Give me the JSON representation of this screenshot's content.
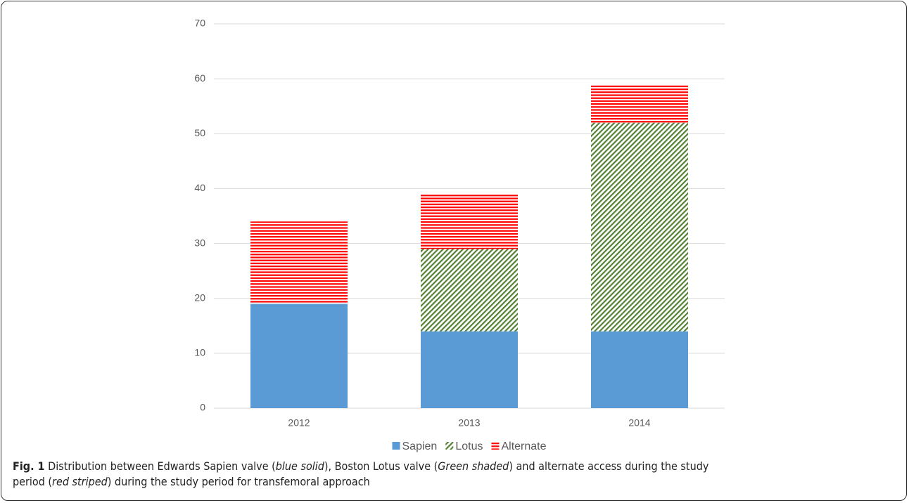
{
  "chart_data": {
    "type": "stacked-bar",
    "categories": [
      "2012",
      "2013",
      "2014"
    ],
    "series": [
      {
        "name": "Sapien",
        "color": "#5b9bd5",
        "values": [
          19,
          14,
          14
        ]
      },
      {
        "name": "Lotus",
        "color": "#548235",
        "values": [
          0,
          15,
          38
        ]
      },
      {
        "name": "Alternate",
        "color": "#ff0000",
        "values": [
          15,
          10,
          7
        ]
      }
    ],
    "ylim": [
      0,
      70
    ],
    "yticks": [
      0,
      10,
      20,
      30,
      40,
      50,
      60,
      70
    ],
    "grid": true,
    "legend": "bottom"
  },
  "caption": {
    "label": "Fig. 1",
    "parts": [
      "Distribution between Edwards Sapien valve (",
      "blue solid",
      "), Boston Lotus valve (",
      "Green shaded",
      ") and alternate access during the study period (",
      "red striped",
      ") during the study period for transfemoral approach"
    ]
  }
}
